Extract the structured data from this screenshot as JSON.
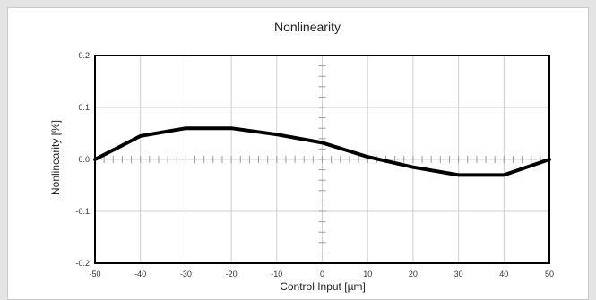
{
  "chart_data": {
    "type": "line",
    "title": "Nonlinearity",
    "xlabel": "Control Input [µm]",
    "ylabel": "Nonlinearity [%]",
    "xlim": [
      -50,
      50
    ],
    "ylim": [
      -0.2,
      0.2
    ],
    "xticks": [
      -50,
      -40,
      -30,
      -20,
      -10,
      0,
      10,
      20,
      30,
      40,
      50
    ],
    "yticks": [
      -0.2,
      -0.1,
      0.0,
      0.1,
      0.2
    ],
    "ytick_labels": [
      "-0.2",
      "-0.1",
      "0.0",
      "0.1",
      "0.2"
    ],
    "grid": true,
    "series": [
      {
        "x": [
          -50,
          -40,
          -30,
          -20,
          -10,
          0,
          10,
          20,
          30,
          40,
          50
        ],
        "y": [
          0.0,
          0.045,
          0.06,
          0.06,
          0.048,
          0.032,
          0.005,
          -0.015,
          -0.03,
          -0.03,
          0.0
        ]
      }
    ]
  },
  "colors": {
    "line": "#000000",
    "grid": "#cfcfcf",
    "axis": "#000000",
    "background": "#e4e4e4"
  }
}
